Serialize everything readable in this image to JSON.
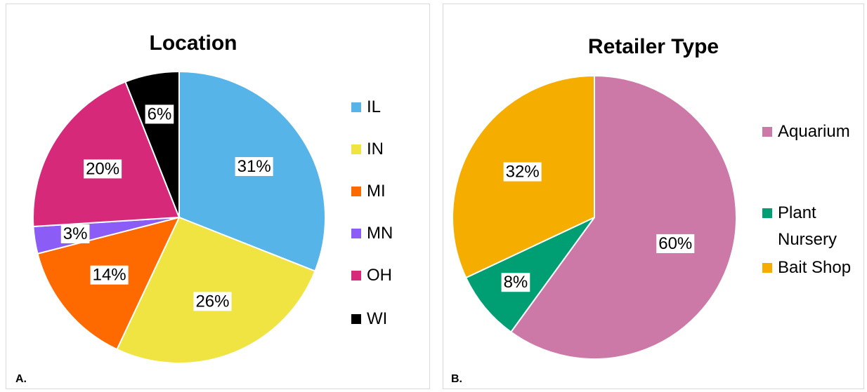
{
  "chart_data": [
    {
      "type": "pie",
      "title": "Location",
      "panel_label": "A.",
      "categories": [
        "IL",
        "IN",
        "MI",
        "MN",
        "OH",
        "WI"
      ],
      "values": [
        31,
        26,
        14,
        3,
        20,
        6
      ],
      "value_labels": [
        "31%",
        "26%",
        "14%",
        "3%",
        "20%",
        "6%"
      ],
      "colors": [
        "#56b4e9",
        "#f0e442",
        "#ff6a00",
        "#8b5cf6",
        "#d6297a",
        "#000000"
      ]
    },
    {
      "type": "pie",
      "title": "Retailer Type",
      "panel_label": "B.",
      "categories": [
        "Aquarium",
        "Plant Nursery",
        "Bait Shop"
      ],
      "values": [
        60,
        8,
        32
      ],
      "value_labels": [
        "60%",
        "8%",
        "32%"
      ],
      "colors": [
        "#cc79a7",
        "#009e73",
        "#f5ad00"
      ]
    }
  ]
}
